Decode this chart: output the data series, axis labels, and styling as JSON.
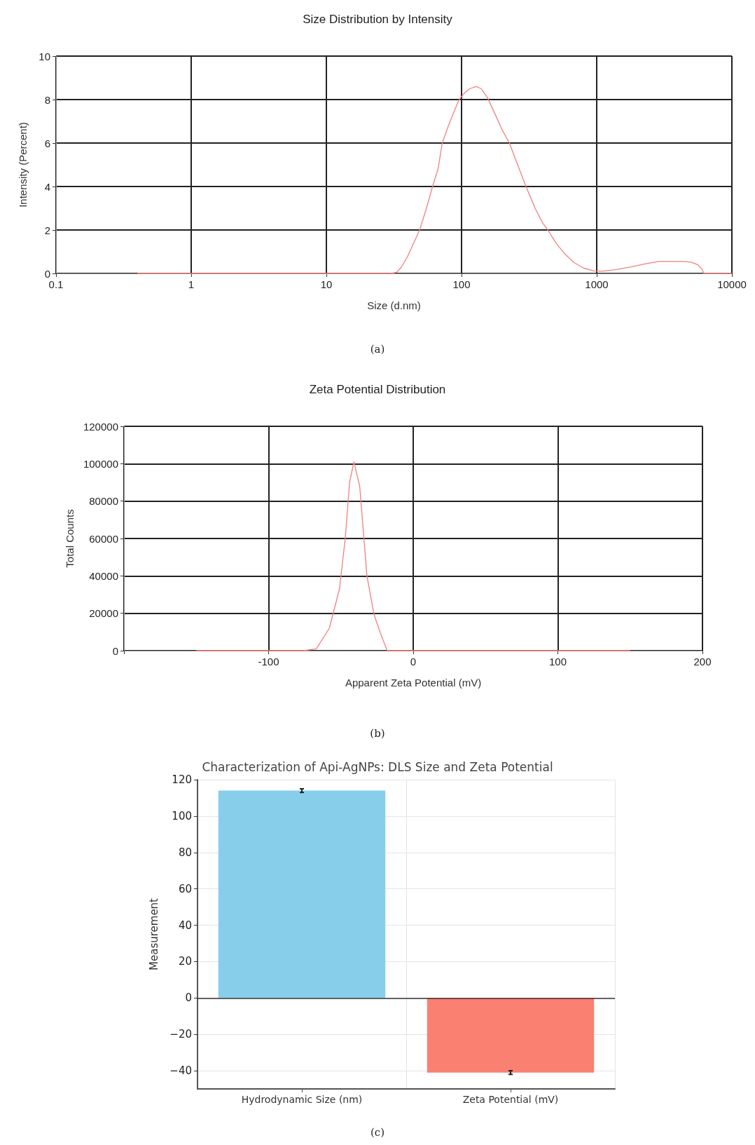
{
  "chart_data": [
    {
      "type": "line",
      "title": "Size Distribution by Intensity",
      "xlabel": "Size (d.nm)",
      "ylabel": "Intensity (Percent)",
      "annotations": [
        "(a)"
      ],
      "log": "x",
      "grid": true,
      "marker": "none",
      "x": [
        0.4,
        30,
        33,
        36,
        40,
        45,
        49,
        55,
        61,
        67,
        72,
        80,
        90,
        96,
        105,
        115,
        128,
        140,
        155,
        175,
        200,
        226,
        260,
        300,
        350,
        400,
        435,
        500,
        580,
        680,
        800,
        950,
        1100,
        1400,
        1800,
        2300,
        2900,
        3600,
        4300,
        5000,
        5600,
        6000,
        6200,
        10000
      ],
      "series": [
        {
          "color": "#f08080",
          "values": [
            0,
            0,
            0.05,
            0.3,
            0.8,
            1.5,
            2,
            3,
            4,
            4.8,
            6,
            6.8,
            7.6,
            8,
            8.3,
            8.5,
            8.6,
            8.5,
            8.1,
            7.4,
            6.6,
            6,
            5,
            4,
            3,
            2.3,
            2,
            1.4,
            0.9,
            0.5,
            0.25,
            0.12,
            0.1,
            0.18,
            0.3,
            0.45,
            0.55,
            0.55,
            0.55,
            0.52,
            0.4,
            0.2,
            0,
            0
          ]
        }
      ],
      "xlim": [
        0.1,
        10000
      ],
      "xticks": [
        0.1,
        1,
        10,
        100,
        1000,
        10000
      ],
      "ylim": [
        0,
        10
      ],
      "yticks": [
        0,
        2,
        4,
        6,
        8,
        10
      ]
    },
    {
      "type": "line",
      "title": "Zeta Potential Distribution",
      "xlabel": "Apparent Zeta Potential (mV)",
      "ylabel": "Total Counts",
      "annotations": [
        "(b)"
      ],
      "grid": true,
      "marker": "none",
      "x": [
        -150,
        -76,
        -67,
        -58,
        -51,
        -47,
        -44,
        -41,
        -37,
        -32,
        -27,
        -22,
        -18,
        150
      ],
      "series": [
        {
          "color": "#f08080",
          "values": [
            0,
            0,
            1000,
            12000,
            33000,
            60000,
            90000,
            101000,
            88000,
            40000,
            19000,
            8000,
            0,
            0
          ]
        }
      ],
      "xlim": [
        -200,
        200
      ],
      "xticks": [
        {
          "value": -200,
          "label": null
        },
        -100,
        0,
        100,
        200
      ],
      "ylim": [
        0,
        120000
      ],
      "yticks": [
        0,
        20000,
        40000,
        60000,
        80000,
        100000,
        120000
      ]
    },
    {
      "type": "bar",
      "title": "Characterization of Api-AgNPs: DLS Size and Zeta Potential",
      "ylabel": "Measurement",
      "annotations": [
        "(c)"
      ],
      "grid": true,
      "categories": [
        "Hydrodynamic Size (nm)",
        "Zeta Potential (mV)"
      ],
      "values": [
        114,
        -41
      ],
      "colors": [
        "#87ceeb",
        "#fa8072"
      ],
      "errors": [
        1,
        1
      ],
      "ref_lines": [
        {
          "axis": "y",
          "value": 0,
          "color": "#333333"
        }
      ],
      "ylim": [
        -50,
        120
      ],
      "yticks": [
        {
          "value": -40,
          "label": "−40"
        },
        {
          "value": -20,
          "label": "−20"
        },
        0,
        20,
        40,
        60,
        80,
        100,
        120
      ]
    }
  ]
}
